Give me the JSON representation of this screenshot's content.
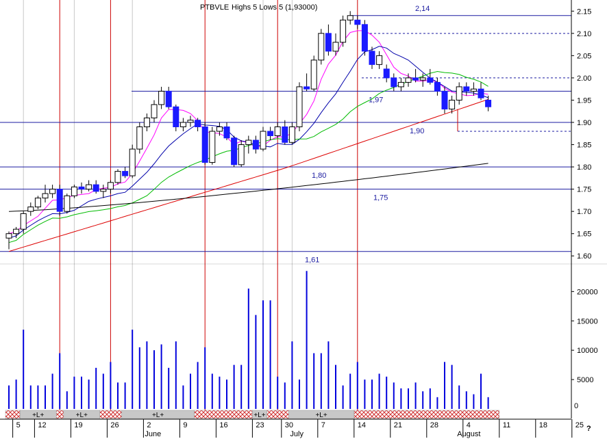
{
  "chart_data": {
    "type": "candlestick",
    "title": "PTBVLE",
    "title_overlay": "Highs 5 Lows 5 (1,93000)",
    "price_axis": {
      "ylim": [
        1.585,
        2.175
      ],
      "ticks": [
        "2.15",
        "2.10",
        "2.05",
        "2.00",
        "1.95",
        "1.90",
        "1.85",
        "1.80",
        "1.75",
        "1.70",
        "1.65",
        "1.60"
      ]
    },
    "volume_axis": {
      "ylim": [
        0,
        24000
      ],
      "ticks": [
        "20000",
        "15000",
        "10000",
        "5000"
      ],
      "zero_label": "0"
    },
    "x_labels": [
      {
        "i": 1,
        "text": "5"
      },
      {
        "i": 4,
        "text": "12"
      },
      {
        "i": 9,
        "text": "19"
      },
      {
        "i": 14,
        "text": "26"
      },
      {
        "i": 19,
        "text": "2"
      },
      {
        "i": 24,
        "text": "9"
      },
      {
        "i": 29,
        "text": "16"
      },
      {
        "i": 34,
        "text": "23"
      },
      {
        "i": 38,
        "text": "30"
      },
      {
        "i": 43,
        "text": "7"
      },
      {
        "i": 48,
        "text": "14"
      },
      {
        "i": 53,
        "text": "21"
      },
      {
        "i": 58,
        "text": "28"
      },
      {
        "i": 63,
        "text": "4"
      },
      {
        "i": 68,
        "text": "11"
      },
      {
        "i": 73,
        "text": "18"
      },
      {
        "i": 78,
        "text": "25"
      }
    ],
    "month_labels": [
      {
        "i": 19,
        "text": "June"
      },
      {
        "i": 39,
        "text": "July"
      },
      {
        "i": 62,
        "text": "August"
      }
    ],
    "corner_label": "?",
    "levels": [
      {
        "value": 2.14,
        "label": "2,14"
      },
      {
        "value": 1.97,
        "label": "1,97"
      },
      {
        "value": 1.9,
        "label": "1,90"
      },
      {
        "value": 1.8,
        "label": "1,80"
      },
      {
        "value": 1.75,
        "label": "1,75"
      },
      {
        "value": 1.61,
        "label": "1,61"
      }
    ],
    "dashed_levels": [
      2.1,
      2.0,
      1.88
    ],
    "red_verticals": [
      7,
      14,
      27,
      37,
      48
    ],
    "grey_verticals": [
      2,
      9,
      17,
      35,
      39
    ],
    "segments": [
      {
        "from": 0,
        "to": 2,
        "type": "hatch"
      },
      {
        "from": 2,
        "to": 7,
        "type": "plain",
        "label": "+L+"
      },
      {
        "from": 7,
        "to": 8,
        "type": "hatch"
      },
      {
        "from": 8,
        "to": 13,
        "type": "plain",
        "label": "+L+"
      },
      {
        "from": 13,
        "to": 16,
        "type": "hatch"
      },
      {
        "from": 16,
        "to": 26,
        "type": "plain",
        "label": "+L+"
      },
      {
        "from": 26,
        "to": 34,
        "type": "hatch"
      },
      {
        "from": 34,
        "to": 36,
        "type": "plain",
        "label": "+L+"
      },
      {
        "from": 36,
        "to": 39,
        "type": "hatch"
      },
      {
        "from": 39,
        "to": 48,
        "type": "plain",
        "label": "+L+"
      },
      {
        "from": 48,
        "to": 68,
        "type": "hatch"
      }
    ],
    "candles": [
      [
        1.64,
        1.655,
        1.615,
        1.65
      ],
      [
        1.65,
        1.665,
        1.64,
        1.66
      ],
      [
        1.66,
        1.7,
        1.65,
        1.695
      ],
      [
        1.7,
        1.72,
        1.69,
        1.71
      ],
      [
        1.71,
        1.735,
        1.705,
        1.73
      ],
      [
        1.73,
        1.76,
        1.72,
        1.74
      ],
      [
        1.74,
        1.76,
        1.73,
        1.75
      ],
      [
        1.75,
        1.76,
        1.69,
        1.7
      ],
      [
        1.7,
        1.74,
        1.695,
        1.735
      ],
      [
        1.735,
        1.76,
        1.73,
        1.755
      ],
      [
        1.755,
        1.765,
        1.74,
        1.75
      ],
      [
        1.75,
        1.77,
        1.745,
        1.76
      ],
      [
        1.76,
        1.77,
        1.74,
        1.745
      ],
      [
        1.745,
        1.76,
        1.73,
        1.75
      ],
      [
        1.75,
        1.77,
        1.74,
        1.765
      ],
      [
        1.765,
        1.795,
        1.76,
        1.79
      ],
      [
        1.79,
        1.8,
        1.775,
        1.78
      ],
      [
        1.78,
        1.85,
        1.775,
        1.84
      ],
      [
        1.84,
        1.9,
        1.83,
        1.89
      ],
      [
        1.89,
        1.92,
        1.88,
        1.91
      ],
      [
        1.91,
        1.95,
        1.9,
        1.94
      ],
      [
        1.94,
        1.98,
        1.93,
        1.97
      ],
      [
        1.97,
        1.98,
        1.93,
        1.935
      ],
      [
        1.935,
        1.94,
        1.88,
        1.89
      ],
      [
        1.89,
        1.91,
        1.88,
        1.9
      ],
      [
        1.9,
        1.915,
        1.89,
        1.905
      ],
      [
        1.905,
        1.91,
        1.88,
        1.89
      ],
      [
        1.89,
        1.9,
        1.805,
        1.81
      ],
      [
        1.81,
        1.89,
        1.805,
        1.88
      ],
      [
        1.88,
        1.9,
        1.87,
        1.89
      ],
      [
        1.89,
        1.9,
        1.86,
        1.865
      ],
      [
        1.865,
        1.87,
        1.8,
        1.805
      ],
      [
        1.805,
        1.86,
        1.8,
        1.85
      ],
      [
        1.85,
        1.87,
        1.83,
        1.86
      ],
      [
        1.86,
        1.87,
        1.83,
        1.84
      ],
      [
        1.84,
        1.89,
        1.835,
        1.88
      ],
      [
        1.88,
        1.89,
        1.86,
        1.87
      ],
      [
        1.87,
        1.9,
        1.865,
        1.89
      ],
      [
        1.89,
        1.905,
        1.85,
        1.855
      ],
      [
        1.855,
        1.9,
        1.85,
        1.89
      ],
      [
        1.89,
        1.99,
        1.88,
        1.98
      ],
      [
        1.98,
        2.01,
        1.97,
        1.975
      ],
      [
        1.975,
        2.05,
        1.97,
        2.04
      ],
      [
        2.04,
        2.11,
        2.03,
        2.1
      ],
      [
        2.1,
        2.12,
        2.05,
        2.06
      ],
      [
        2.06,
        2.1,
        2.05,
        2.08
      ],
      [
        2.08,
        2.14,
        2.07,
        2.13
      ],
      [
        2.13,
        2.15,
        2.12,
        2.14
      ],
      [
        2.13,
        2.14,
        2.11,
        2.12
      ],
      [
        2.12,
        2.13,
        2.05,
        2.06
      ],
      [
        2.06,
        2.07,
        2.02,
        2.03
      ],
      [
        2.03,
        2.06,
        2.02,
        2.05
      ],
      [
        2.02,
        2.03,
        1.99,
        2.0
      ],
      [
        2.0,
        2.01,
        1.97,
        1.98
      ],
      [
        1.98,
        2.0,
        1.97,
        1.99
      ],
      [
        1.99,
        2.01,
        1.98,
        2.0
      ],
      [
        2.0,
        2.02,
        1.99,
        1.995
      ],
      [
        1.995,
        2.01,
        1.98,
        2.0
      ],
      [
        2.0,
        2.02,
        1.985,
        1.99
      ],
      [
        1.99,
        2.0,
        1.96,
        1.97
      ],
      [
        1.97,
        1.98,
        1.92,
        1.93
      ],
      [
        1.93,
        1.96,
        1.92,
        1.95
      ],
      [
        1.95,
        1.99,
        1.94,
        1.98
      ],
      [
        1.98,
        1.99,
        1.96,
        1.97
      ],
      [
        1.97,
        1.99,
        1.96,
        1.975
      ],
      [
        1.975,
        1.99,
        1.95,
        1.955
      ],
      [
        1.95,
        1.96,
        1.925,
        1.935
      ]
    ],
    "volumes": [
      4000,
      5000,
      13500,
      4000,
      4000,
      4000,
      6000,
      9500,
      3000,
      5500,
      5500,
      5000,
      7000,
      6000,
      8000,
      4500,
      4500,
      13500,
      10500,
      11500,
      10000,
      11000,
      7000,
      11500,
      4000,
      6000,
      8000,
      10500,
      6000,
      5500,
      5000,
      7500,
      7500,
      20500,
      16000,
      18500,
      18500,
      5500,
      4500,
      11500,
      5000,
      23500,
      9500,
      9500,
      11500,
      7500,
      4000,
      6000,
      8000,
      5000,
      5000,
      6000,
      5500,
      4500,
      3500,
      3500,
      4500,
      3000,
      3500,
      2000,
      8000,
      7500,
      4000,
      3000,
      2500,
      6000,
      2000
    ],
    "series": [
      {
        "name": "",
        "color": "#ff00ff",
        "period": 5
      },
      {
        "name": "",
        "color": "#0000aa",
        "period": 10
      },
      {
        "name": "",
        "color": "#00bb00",
        "period": 20
      },
      {
        "name": "",
        "color": "#dd0000",
        "period": 50
      },
      {
        "name": "",
        "color": "#000000",
        "period": 120
      }
    ],
    "colors": {
      "up": "#1a1aff",
      "down": "#1a1aff",
      "red_line": "#cc0000",
      "level_line": "#1a1aa0"
    }
  }
}
